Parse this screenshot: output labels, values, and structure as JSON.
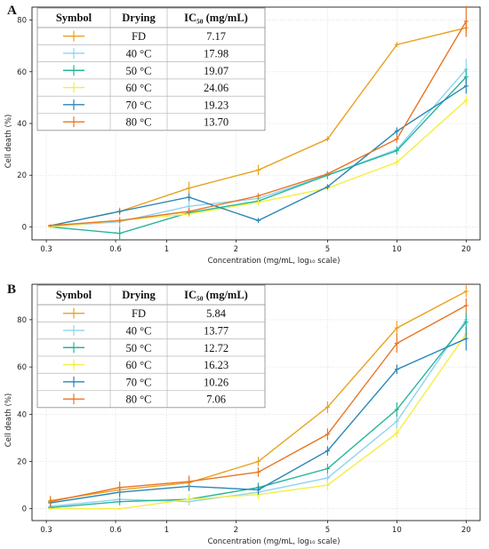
{
  "chart_data": [
    {
      "type": "line",
      "panel": "A",
      "xlabel": "Concentration (mg/mL, log₁₀ scale)",
      "ylabel": "Cell death (%)",
      "xscale": "log",
      "x": [
        0.3125,
        0.625,
        1.25,
        2.5,
        5,
        10,
        20
      ],
      "x_tick_labels": [
        "0.3",
        "0.6",
        "1",
        "2",
        "5",
        "10",
        "20"
      ],
      "x_tick_values": [
        0.3,
        0.6,
        1,
        2,
        5,
        10,
        20
      ],
      "xlim": [
        0.26,
        23
      ],
      "y_ticks": [
        0,
        20,
        40,
        60,
        80
      ],
      "ylim": [
        -5,
        85
      ],
      "grid": true,
      "legend_placement": "top-left",
      "legend_headers": [
        "Symbol",
        "Drying",
        "IC₅₀ (mg/mL)"
      ],
      "series": [
        {
          "name": "FD",
          "ic50": "7.17",
          "color": "#e8a21f",
          "values": [
            0.5,
            6,
            15,
            22,
            34,
            70.5,
            77
          ],
          "errors": [
            0.5,
            1.5,
            2.5,
            2,
            1,
            1,
            2
          ]
        },
        {
          "name": "40 °C",
          "ic50": "17.98",
          "color": "#8fd3f0",
          "values": [
            0.2,
            2,
            8,
            11,
            20,
            30,
            61
          ],
          "errors": [
            0.5,
            2,
            2,
            2,
            1.5,
            1.5,
            4
          ]
        },
        {
          "name": "50 °C",
          "ic50": "19.07",
          "color": "#25b59a",
          "values": [
            0,
            -2.5,
            5.5,
            10,
            20,
            29.5,
            58
          ],
          "errors": [
            0.5,
            2.5,
            1.5,
            1.5,
            1.5,
            1.5,
            3
          ]
        },
        {
          "name": "60 °C",
          "ic50": "24.06",
          "color": "#f5ee40",
          "values": [
            0,
            2.5,
            5,
            9.5,
            15,
            25,
            49
          ],
          "errors": [
            0.5,
            1,
            1,
            1,
            1,
            1.5,
            2
          ]
        },
        {
          "name": "70 °C",
          "ic50": "19.23",
          "color": "#2a86b5",
          "values": [
            0.5,
            6,
            11.5,
            2.5,
            15.5,
            37,
            54.5
          ],
          "errors": [
            0.5,
            1,
            1.5,
            1,
            1,
            1.5,
            3
          ]
        },
        {
          "name": "80 °C",
          "ic50": "13.70",
          "color": "#e87524",
          "values": [
            0.5,
            2.5,
            6,
            12,
            20.5,
            34,
            79.5
          ],
          "errors": [
            0.5,
            1,
            1.5,
            1,
            1,
            1.5,
            6
          ]
        }
      ]
    },
    {
      "type": "line",
      "panel": "B",
      "xlabel": "Concentration (mg/mL, log₁₀ scale)",
      "ylabel": "Cell death (%)",
      "xscale": "log",
      "x": [
        0.3125,
        0.625,
        1.25,
        2.5,
        5,
        10,
        20
      ],
      "x_tick_labels": [
        "0.3",
        "0.6",
        "1",
        "2",
        "5",
        "10",
        "20"
      ],
      "x_tick_values": [
        0.3,
        0.6,
        1,
        2,
        5,
        10,
        20
      ],
      "xlim": [
        0.26,
        23
      ],
      "y_ticks": [
        0,
        20,
        40,
        60,
        80
      ],
      "ylim": [
        -5,
        95
      ],
      "grid": true,
      "legend_placement": "top-left",
      "legend_headers": [
        "Symbol",
        "Drying",
        "IC₅₀ (mg/mL)"
      ],
      "series": [
        {
          "name": "FD",
          "ic50": "5.84",
          "color": "#e8a21f",
          "values": [
            3.5,
            8,
            11,
            20,
            43,
            76.5,
            92
          ],
          "errors": [
            2,
            2,
            2,
            2,
            2.5,
            3,
            2.5
          ]
        },
        {
          "name": "40 °C",
          "ic50": "13.77",
          "color": "#8fd3f0",
          "values": [
            1,
            4,
            3,
            7,
            13,
            37,
            80
          ],
          "errors": [
            1,
            1.5,
            1.5,
            1.5,
            2,
            3,
            3
          ]
        },
        {
          "name": "50 °C",
          "ic50": "12.72",
          "color": "#25b59a",
          "values": [
            0.5,
            3,
            4,
            9,
            17,
            42,
            79
          ],
          "errors": [
            1,
            1.5,
            2,
            2,
            2,
            3,
            4
          ]
        },
        {
          "name": "60 °C",
          "ic50": "16.23",
          "color": "#f5ee40",
          "values": [
            0,
            0,
            4,
            6,
            10,
            32,
            74
          ],
          "errors": [
            0.5,
            0.5,
            2,
            2,
            2,
            2,
            3
          ]
        },
        {
          "name": "70 °C",
          "ic50": "10.26",
          "color": "#2a86b5",
          "values": [
            2.5,
            7,
            9.5,
            8,
            24.5,
            59,
            72
          ],
          "errors": [
            1.5,
            2,
            2,
            2,
            2,
            2,
            5
          ]
        },
        {
          "name": "80 °C",
          "ic50": "7.06",
          "color": "#e87524",
          "values": [
            3,
            9,
            11.5,
            15.5,
            31.5,
            70,
            86
          ],
          "errors": [
            2,
            2.5,
            2.5,
            2,
            2.5,
            4,
            3
          ]
        }
      ]
    }
  ]
}
